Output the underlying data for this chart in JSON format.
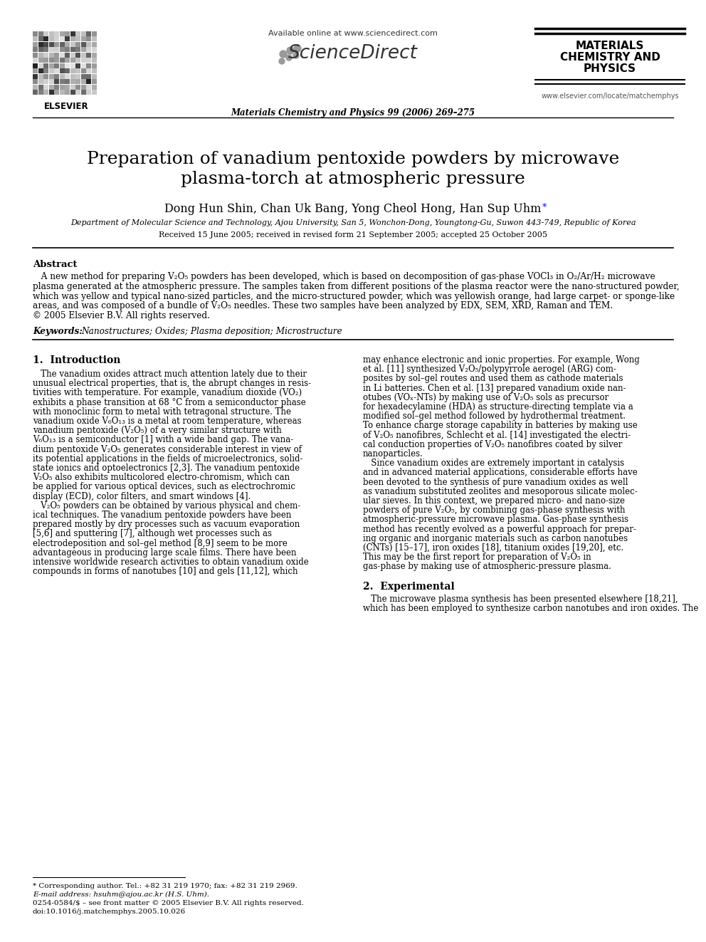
{
  "bg_color": "#ffffff",
  "title_line1": "Preparation of vanadium pentoxide powders by microwave",
  "title_line2": "plasma-torch at atmospheric pressure",
  "authors_main": "Dong Hun Shin, Chan Uk Bang, Yong Cheol Hong, Han Sup Uhm",
  "authors_star": "*",
  "affiliation": "Department of Molecular Science and Technology, Ajou University, San 5, Wonchon-Dong, Youngtong-Gu, Suwon 443-749, Republic of Korea",
  "received": "Received 15 June 2005; received in revised form 21 September 2005; accepted 25 October 2005",
  "abstract_title": "Abstract",
  "keywords_label": "Keywords:  ",
  "keywords_text": "Nanostructures; Oxides; Plasma deposition; Microstructure",
  "section1_title": "1.  Introduction",
  "section2_title": "2.  Experimental",
  "header_available": "Available online at www.sciencedirect.com",
  "header_sciencedirect": "ScienceDirect",
  "header_journal": "Materials Chemistry and Physics 99 (2006) 269–275",
  "header_right1": "MATERIALS",
  "header_right2": "CHEMISTRY AND",
  "header_right3": "PHYSICS",
  "header_url": "www.elsevier.com/locate/matchemphys",
  "elsevier_label": "ELSEVIER",
  "footnote_star": "* Corresponding author. Tel.: +82 31 219 1970; fax: +82 31 219 2969.",
  "footnote_email": "E-mail address: hsuhm@ajou.ac.kr (H.S. Uhm).",
  "footnote_issn": "0254-0584/$ – see front matter © 2005 Elsevier B.V. All rights reserved.",
  "footnote_doi": "doi:10.1016/j.matchemphys.2005.10.026",
  "abstract_lines": [
    "   A new method for preparing V₂O₅ powders has been developed, which is based on decomposition of gas-phase VOCl₃ in O₂/Ar/H₂ microwave",
    "plasma generated at the atmospheric pressure. The samples taken from different positions of the plasma reactor were the nano-structured powder,",
    "which was yellow and typical nano-sized particles, and the micro-structured powder, which was yellowish orange, had large carpet- or sponge-like",
    "areas, and was composed of a bundle of V₂O₅ needles. These two samples have been analyzed by EDX, SEM, XRD, Raman and TEM.",
    "© 2005 Elsevier B.V. All rights reserved."
  ],
  "intro_left_lines": [
    "   The vanadium oxides attract much attention lately due to their",
    "unusual electrical properties, that is, the abrupt changes in resis-",
    "tivities with temperature. For example, vanadium dioxide (VO₂)",
    "exhibits a phase transition at 68 °C from a semiconductor phase",
    "with monoclinic form to metal with tetragonal structure. The",
    "vanadium oxide V₆O₁₃ is a metal at room temperature, whereas",
    "vanadium pentoxide (V₂O₅) of a very similar structure with",
    "V₆O₁₃ is a semiconductor [1] with a wide band gap. The vana-",
    "dium pentoxide V₂O₅ generates considerable interest in view of",
    "its potential applications in the fields of microelectronics, solid-",
    "state ionics and optoelectronics [2,3]. The vanadium pentoxide",
    "V₂O₅ also exhibits multicolored electro-chromism, which can",
    "be applied for various optical devices, such as electrochromic",
    "display (ECD), color filters, and smart windows [4].",
    "   V₂O₅ powders can be obtained by various physical and chem-",
    "ical techniques. The vanadium pentoxide powders have been",
    "prepared mostly by dry processes such as vacuum evaporation",
    "[5,6] and sputtering [7], although wet processes such as",
    "electrodeposition and sol–gel method [8,9] seem to be more",
    "advantageous in producing large scale films. There have been",
    "intensive worldwide research activities to obtain vanadium oxide",
    "compounds in forms of nanotubes [10] and gels [11,12], which"
  ],
  "intro_right_lines": [
    "may enhance electronic and ionic properties. For example, Wong",
    "et al. [11] synthesized V₂O₅/polypyrrole aerogel (ARG) com-",
    "posites by sol–gel routes and used them as cathode materials",
    "in Li batteries. Chen et al. [13] prepared vanadium oxide nan-",
    "otubes (VOₓ-NTs) by making use of V₂O₅ sols as precursor",
    "for hexadecylamine (HDA) as structure-directing template via a",
    "modified sol–gel method followed by hydrothermal treatment.",
    "To enhance charge storage capability in batteries by making use",
    "of V₂O₅ nanofibres, Schlecht et al. [14] investigated the electri-",
    "cal conduction properties of V₂O₅ nanofibres coated by silver",
    "nanoparticles.",
    "   Since vanadium oxides are extremely important in catalysis",
    "and in advanced material applications, considerable efforts have",
    "been devoted to the synthesis of pure vanadium oxides as well",
    "as vanadium substituted zeolites and mesoporous silicate molec-",
    "ular sieves. In this context, we prepared micro- and nano-size",
    "powders of pure V₂O₅, by combining gas-phase synthesis with",
    "atmospheric-pressure microwave plasma. Gas-phase synthesis",
    "method has recently evolved as a powerful approach for prepar-",
    "ing organic and inorganic materials such as carbon nanotubes",
    "(CNTs) [15–17], iron oxides [18], titanium oxides [19,20], etc.",
    "This may be the first report for preparation of V₂O₅ in",
    "gas-phase by making use of atmospheric-pressure plasma."
  ],
  "exp_right_lines": [
    "   The microwave plasma synthesis has been presented elsewhere [18,21],",
    "which has been employed to synthesize carbon nanotubes and iron oxides. The"
  ]
}
